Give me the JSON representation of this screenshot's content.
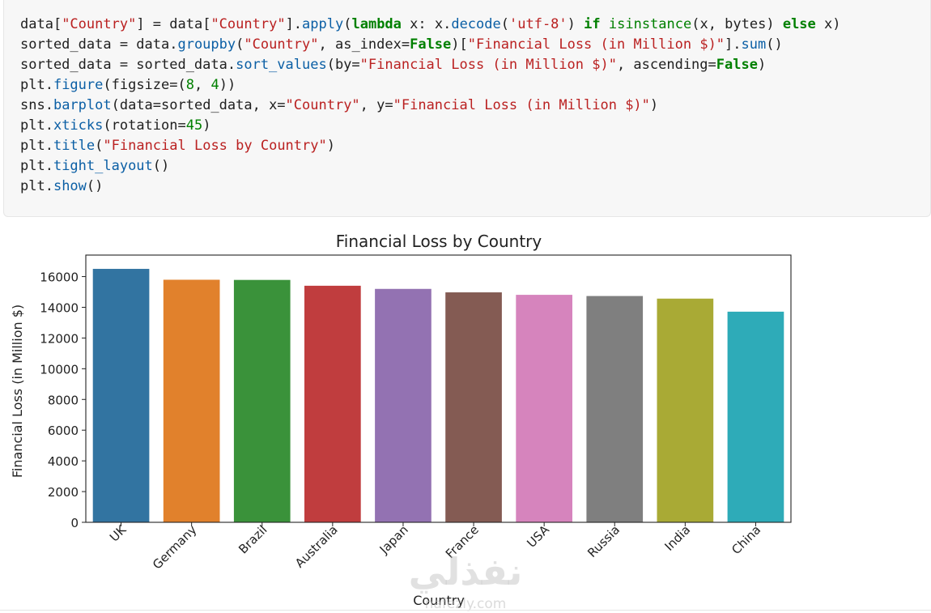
{
  "code_lines": [
    [
      {
        "t": "data[",
        "c": "p"
      },
      {
        "t": "\"Country\"",
        "c": "s"
      },
      {
        "t": "] = data[",
        "c": "p"
      },
      {
        "t": "\"Country\"",
        "c": "s"
      },
      {
        "t": "].",
        "c": "p"
      },
      {
        "t": "apply",
        "c": "f"
      },
      {
        "t": "(",
        "c": "p"
      },
      {
        "t": "lambda",
        "c": "k"
      },
      {
        "t": " x: x.",
        "c": "p"
      },
      {
        "t": "decode",
        "c": "f"
      },
      {
        "t": "(",
        "c": "p"
      },
      {
        "t": "'utf-8'",
        "c": "s"
      },
      {
        "t": ") ",
        "c": "p"
      },
      {
        "t": "if",
        "c": "k"
      },
      {
        "t": " ",
        "c": "p"
      },
      {
        "t": "isinstance",
        "c": "n"
      },
      {
        "t": "(x, bytes) ",
        "c": "p"
      },
      {
        "t": "else",
        "c": "k"
      },
      {
        "t": " x)",
        "c": "p"
      }
    ],
    [
      {
        "t": "sorted_data = data.",
        "c": "p"
      },
      {
        "t": "groupby",
        "c": "f"
      },
      {
        "t": "(",
        "c": "p"
      },
      {
        "t": "\"Country\"",
        "c": "s"
      },
      {
        "t": ", as_index=",
        "c": "p"
      },
      {
        "t": "False",
        "c": "k"
      },
      {
        "t": ")[",
        "c": "p"
      },
      {
        "t": "\"Financial Loss (in Million $)\"",
        "c": "s"
      },
      {
        "t": "].",
        "c": "p"
      },
      {
        "t": "sum",
        "c": "f"
      },
      {
        "t": "()",
        "c": "p"
      }
    ],
    [
      {
        "t": "sorted_data = sorted_data.",
        "c": "p"
      },
      {
        "t": "sort_values",
        "c": "f"
      },
      {
        "t": "(by=",
        "c": "p"
      },
      {
        "t": "\"Financial Loss (in Million $)\"",
        "c": "s"
      },
      {
        "t": ", ascending=",
        "c": "p"
      },
      {
        "t": "False",
        "c": "k"
      },
      {
        "t": ")",
        "c": "p"
      }
    ],
    [
      {
        "t": "plt.",
        "c": "p"
      },
      {
        "t": "figure",
        "c": "f"
      },
      {
        "t": "(figsize=(",
        "c": "p"
      },
      {
        "t": "8",
        "c": "n"
      },
      {
        "t": ", ",
        "c": "p"
      },
      {
        "t": "4",
        "c": "n"
      },
      {
        "t": "))",
        "c": "p"
      }
    ],
    [
      {
        "t": "sns.",
        "c": "p"
      },
      {
        "t": "barplot",
        "c": "f"
      },
      {
        "t": "(data=sorted_data, x=",
        "c": "p"
      },
      {
        "t": "\"Country\"",
        "c": "s"
      },
      {
        "t": ", y=",
        "c": "p"
      },
      {
        "t": "\"Financial Loss (in Million $)\"",
        "c": "s"
      },
      {
        "t": ")",
        "c": "p"
      }
    ],
    [
      {
        "t": "plt.",
        "c": "p"
      },
      {
        "t": "xticks",
        "c": "f"
      },
      {
        "t": "(rotation=",
        "c": "p"
      },
      {
        "t": "45",
        "c": "n"
      },
      {
        "t": ")",
        "c": "p"
      }
    ],
    [
      {
        "t": "plt.",
        "c": "p"
      },
      {
        "t": "title",
        "c": "f"
      },
      {
        "t": "(",
        "c": "p"
      },
      {
        "t": "\"Financial Loss by Country\"",
        "c": "s"
      },
      {
        "t": ")",
        "c": "p"
      }
    ],
    [
      {
        "t": "plt.",
        "c": "p"
      },
      {
        "t": "tight_layout",
        "c": "f"
      },
      {
        "t": "()",
        "c": "p"
      }
    ],
    [
      {
        "t": "plt.",
        "c": "p"
      },
      {
        "t": "show",
        "c": "f"
      },
      {
        "t": "()",
        "c": "p"
      }
    ]
  ],
  "chart_data": {
    "type": "bar",
    "title": "Financial Loss by Country",
    "xlabel": "Country",
    "ylabel": "Financial Loss (in Million $)",
    "categories": [
      "UK",
      "Germany",
      "Brazil",
      "Australia",
      "Japan",
      "France",
      "USA",
      "Russia",
      "India",
      "China"
    ],
    "values": [
      16502,
      15794,
      15782,
      15403,
      15198,
      14973,
      14812,
      14734,
      14565,
      13715
    ],
    "colors": [
      "#3274a1",
      "#e1812c",
      "#3a923a",
      "#c03d3e",
      "#9372b2",
      "#845b53",
      "#d684bd",
      "#7f7f7f",
      "#a9aa35",
      "#2eabb8"
    ],
    "ylim": [
      0,
      17400
    ],
    "yticks": [
      0,
      2000,
      4000,
      6000,
      8000,
      10000,
      12000,
      14000,
      16000
    ],
    "grid": false,
    "legend": "none"
  },
  "watermark": {
    "arabic": "نفذلي",
    "latin": "nafezly.com"
  }
}
